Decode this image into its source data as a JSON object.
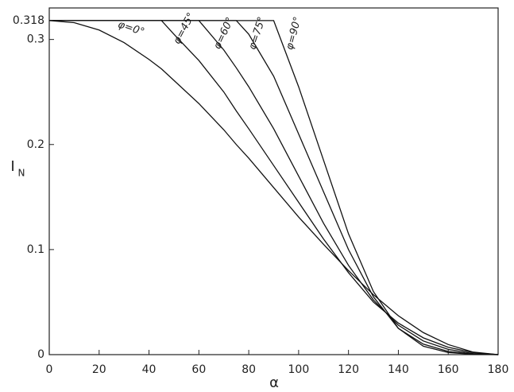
{
  "chart_data": {
    "type": "line",
    "xlabel": "α",
    "ylabel": "I",
    "ylabel_sub": "N",
    "x": [
      0,
      10,
      20,
      30,
      40,
      45,
      50,
      60,
      70,
      75,
      80,
      90,
      100,
      110,
      120,
      130,
      140,
      150,
      160,
      170,
      180
    ],
    "series": [
      {
        "name": "φ=0°",
        "color": "#111111",
        "values": [
          0.318,
          0.316,
          0.309,
          0.297,
          0.281,
          0.272,
          0.261,
          0.239,
          0.214,
          0.2,
          0.187,
          0.159,
          0.131,
          0.105,
          0.08,
          0.057,
          0.037,
          0.021,
          0.0096,
          0.0024,
          0
        ]
      },
      {
        "name": "φ=45°",
        "color": "#111111",
        "values": [
          0.318,
          0.318,
          0.318,
          0.318,
          0.318,
          0.318,
          0.305,
          0.28,
          0.25,
          0.232,
          0.215,
          0.18,
          0.145,
          0.11,
          0.078,
          0.05,
          0.03,
          0.016,
          0.007,
          0.002,
          0
        ]
      },
      {
        "name": "φ=60°",
        "color": "#111111",
        "values": [
          0.318,
          0.318,
          0.318,
          0.318,
          0.318,
          0.318,
          0.318,
          0.318,
          0.29,
          0.273,
          0.255,
          0.215,
          0.17,
          0.125,
          0.085,
          0.052,
          0.028,
          0.013,
          0.005,
          0.001,
          0
        ]
      },
      {
        "name": "φ=75°",
        "color": "#111111",
        "values": [
          0.318,
          0.318,
          0.318,
          0.318,
          0.318,
          0.318,
          0.318,
          0.318,
          0.318,
          0.318,
          0.305,
          0.265,
          0.21,
          0.155,
          0.1,
          0.055,
          0.025,
          0.01,
          0.003,
          0.0005,
          0
        ]
      },
      {
        "name": "φ=90°",
        "color": "#111111",
        "values": [
          0.318,
          0.318,
          0.318,
          0.318,
          0.318,
          0.318,
          0.318,
          0.318,
          0.318,
          0.318,
          0.318,
          0.318,
          0.255,
          0.185,
          0.115,
          0.06,
          0.025,
          0.008,
          0.002,
          0.0003,
          0
        ]
      }
    ],
    "xlim": [
      0,
      180
    ],
    "xticks": [
      0,
      20,
      40,
      60,
      80,
      100,
      120,
      140,
      160,
      180
    ],
    "ylim": [
      0,
      0.33
    ],
    "yticks": [
      0,
      0.1,
      0.2,
      0.3,
      0.318
    ],
    "grid": false
  }
}
